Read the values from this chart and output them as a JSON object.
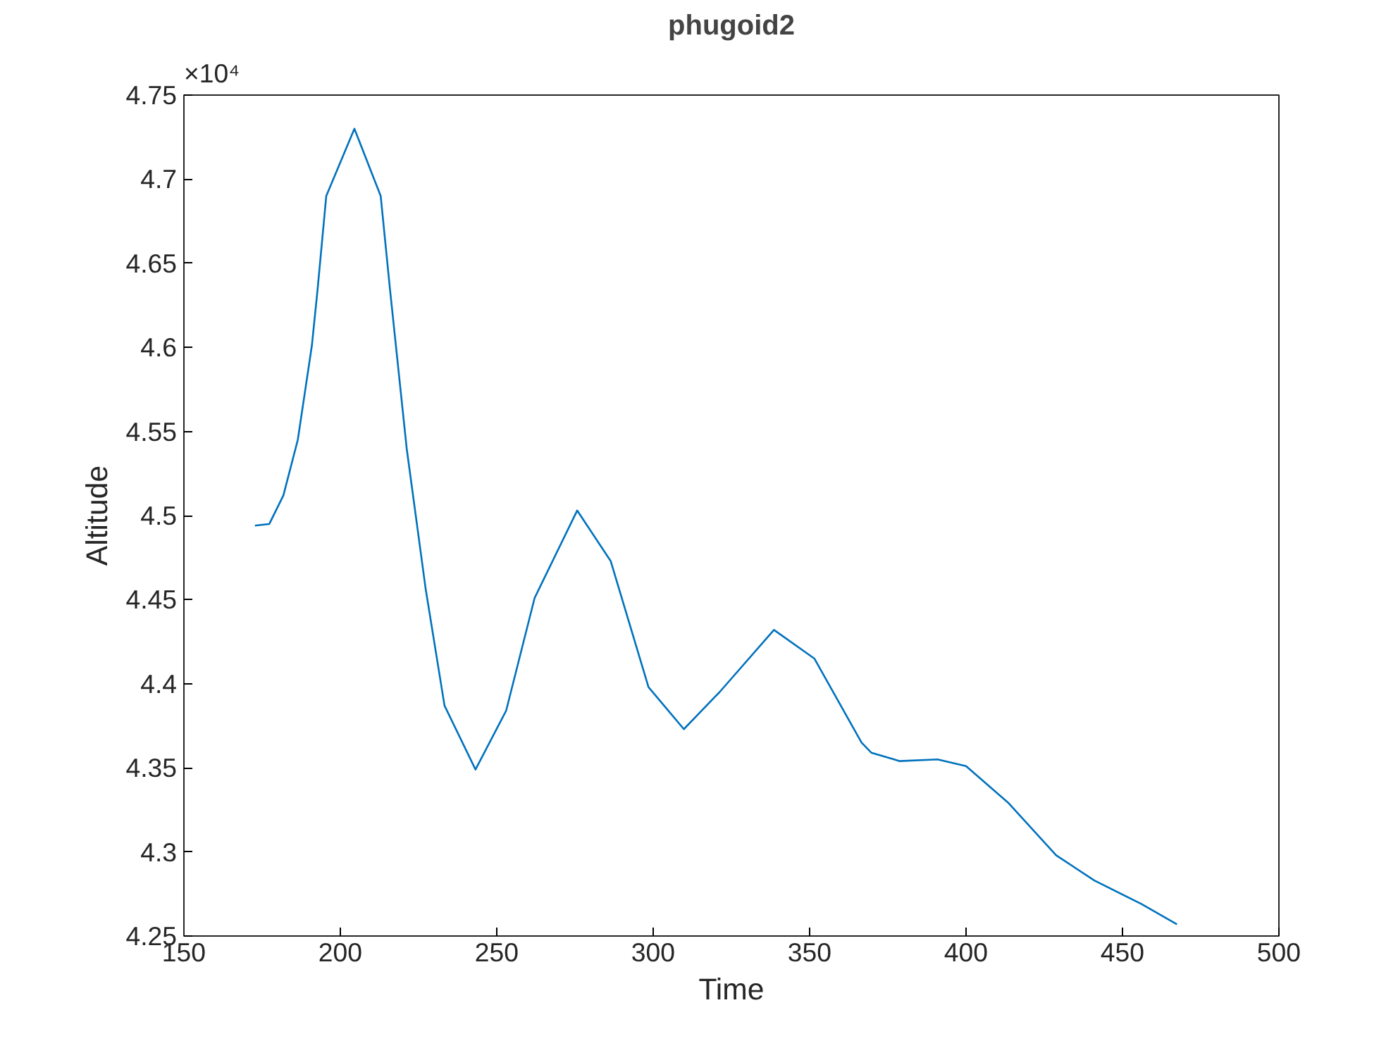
{
  "chart_data": {
    "type": "line",
    "title": "phugoid2",
    "xlabel": "Time",
    "ylabel": "Altitude",
    "annotations": [
      "×10⁴"
    ],
    "x": [
      172.7,
      177.3,
      181.8,
      186.4,
      190.9,
      192.7,
      195.5,
      204.5,
      212.9,
      215.9,
      221.2,
      227.3,
      233.3,
      243.2,
      253,
      262.1,
      275.7,
      286.4,
      298.5,
      309.8,
      321.2,
      338.6,
      351.5,
      366.6,
      369.7,
      378.8,
      390.9,
      400,
      413.6,
      428.8,
      441,
      456.1,
      467.4
    ],
    "series": [
      {
        "color": "#0072bd",
        "values": [
          4.494,
          4.495,
          4.512,
          4.545,
          4.601,
          4.634,
          4.69,
          4.73,
          4.69,
          4.634,
          4.54,
          4.456,
          4.387,
          4.349,
          4.384,
          4.451,
          4.503,
          4.473,
          4.398,
          4.373,
          4.395,
          4.432,
          4.415,
          4.365,
          4.359,
          4.354,
          4.355,
          4.351,
          4.329,
          4.298,
          4.283,
          4.269,
          4.257
        ]
      }
    ],
    "xlim": [
      150,
      500
    ],
    "xticks": [
      150,
      200,
      250,
      300,
      350,
      400,
      450,
      500
    ],
    "ylim": [
      4.25,
      4.75
    ],
    "yticks": [
      4.25,
      4.3,
      4.35,
      4.4,
      4.45,
      4.5,
      4.55,
      4.6,
      4.65,
      4.7,
      4.75
    ],
    "grid": false,
    "marker": "none",
    "line_style": "solid"
  }
}
